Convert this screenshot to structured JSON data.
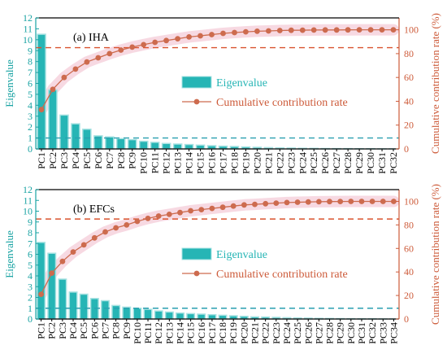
{
  "colors": {
    "bar": "#26b5b5",
    "line": "#cd6b4e",
    "left_axis": "#19a3a3",
    "right_axis": "#cd5b3a",
    "ref_left": "#2a9fb0",
    "ref_right": "#d9532f"
  },
  "chart_data": [
    {
      "type": "bar",
      "label": "(a) IHA",
      "categories": [
        "PC1",
        "PC2",
        "PC3",
        "PC4",
        "PC5",
        "PC6",
        "PC7",
        "PC8",
        "PC9",
        "PC10",
        "PC11",
        "PC12",
        "PC13",
        "PC14",
        "PC15",
        "PC16",
        "PC17",
        "PC18",
        "PC19",
        "PC20",
        "PC21",
        "PC22",
        "PC23",
        "PC24",
        "PC25",
        "PC26",
        "PC27",
        "PC28",
        "PC29",
        "PC30",
        "PC31",
        "PC32"
      ],
      "series": [
        {
          "name": "Eigenvalue",
          "axis": "left",
          "type": "bar",
          "values": [
            10.5,
            5.4,
            3.1,
            2.3,
            1.8,
            1.2,
            1.1,
            0.95,
            0.85,
            0.7,
            0.6,
            0.5,
            0.45,
            0.4,
            0.35,
            0.3,
            0.25,
            0.22,
            0.18,
            0.15,
            0.12,
            0.1,
            0.08,
            0.06,
            0.05,
            0.04,
            0.03,
            0.03,
            0.02,
            0.02,
            0.01,
            0.01
          ]
        },
        {
          "name": "Cumulative contribution rate",
          "axis": "right",
          "type": "line",
          "values": [
            33,
            50,
            60,
            67,
            73,
            76.5,
            80,
            83,
            85.5,
            87.5,
            89.5,
            91,
            92.5,
            94,
            95,
            96,
            97,
            97.7,
            98.3,
            98.8,
            99.1,
            99.4,
            99.6,
            99.7,
            99.8,
            99.9,
            99.9,
            99.95,
            100,
            100,
            100,
            100
          ]
        }
      ],
      "ylabel_left": "Eigenvalue",
      "ylabel_right": "Cumulative contribution rate (%)",
      "ylim_left": [
        0,
        12
      ],
      "ylim_right": [
        0,
        110
      ],
      "yticks_left": [
        0,
        1,
        2,
        3,
        4,
        5,
        6,
        7,
        8,
        9,
        10,
        11,
        12
      ],
      "yticks_right": [
        0,
        20,
        40,
        60,
        80,
        100
      ],
      "ref_left": 1,
      "ref_right": 85,
      "legend": [
        "Eigenvalue",
        "Cumulative contribution rate"
      ],
      "legend_position": "center-right"
    },
    {
      "type": "bar",
      "label": "(b) EFCs",
      "categories": [
        "PC1",
        "PC2",
        "PC3",
        "PC4",
        "PC5",
        "PC6",
        "PC7",
        "PC8",
        "PC9",
        "PC10",
        "PC11",
        "PC12",
        "PC13",
        "PC14",
        "PC15",
        "PC16",
        "PC17",
        "PC18",
        "PC19",
        "PC20",
        "PC21",
        "PC22",
        "PC23",
        "PC24",
        "PC25",
        "PC26",
        "PC27",
        "PC28",
        "PC29",
        "PC30",
        "PC31",
        "PC32",
        "PC33",
        "PC34"
      ],
      "series": [
        {
          "name": "Eigenvalue",
          "axis": "left",
          "type": "bar",
          "values": [
            7.1,
            6.1,
            3.7,
            2.5,
            2.3,
            1.9,
            1.7,
            1.25,
            1.1,
            1.0,
            0.9,
            0.75,
            0.65,
            0.55,
            0.5,
            0.45,
            0.4,
            0.35,
            0.3,
            0.25,
            0.2,
            0.18,
            0.15,
            0.12,
            0.1,
            0.08,
            0.06,
            0.05,
            0.04,
            0.03,
            0.02,
            0.02,
            0.01,
            0.01
          ]
        },
        {
          "name": "Cumulative contribution rate",
          "axis": "right",
          "type": "line",
          "values": [
            21,
            39,
            49,
            57,
            63,
            69,
            74,
            77.5,
            80,
            83,
            85.5,
            87.5,
            89,
            90.5,
            92,
            93,
            94,
            95,
            96,
            97,
            97.5,
            98,
            98.5,
            99,
            99.3,
            99.5,
            99.7,
            99.8,
            99.9,
            100,
            100,
            100,
            100,
            100
          ]
        }
      ],
      "ylabel_left": "Eigenvalue",
      "ylabel_right": "Cumulative contribution rate (%)",
      "ylim_left": [
        0,
        12
      ],
      "ylim_right": [
        0,
        110
      ],
      "yticks_left": [
        0,
        1,
        2,
        3,
        4,
        5,
        6,
        7,
        8,
        9,
        10,
        11,
        12
      ],
      "yticks_right": [
        0,
        20,
        40,
        60,
        80,
        100
      ],
      "ref_left": 1,
      "ref_right": 85,
      "legend": [
        "Eigenvalue",
        "Cumulative contribution rate"
      ],
      "legend_position": "center-right"
    }
  ]
}
